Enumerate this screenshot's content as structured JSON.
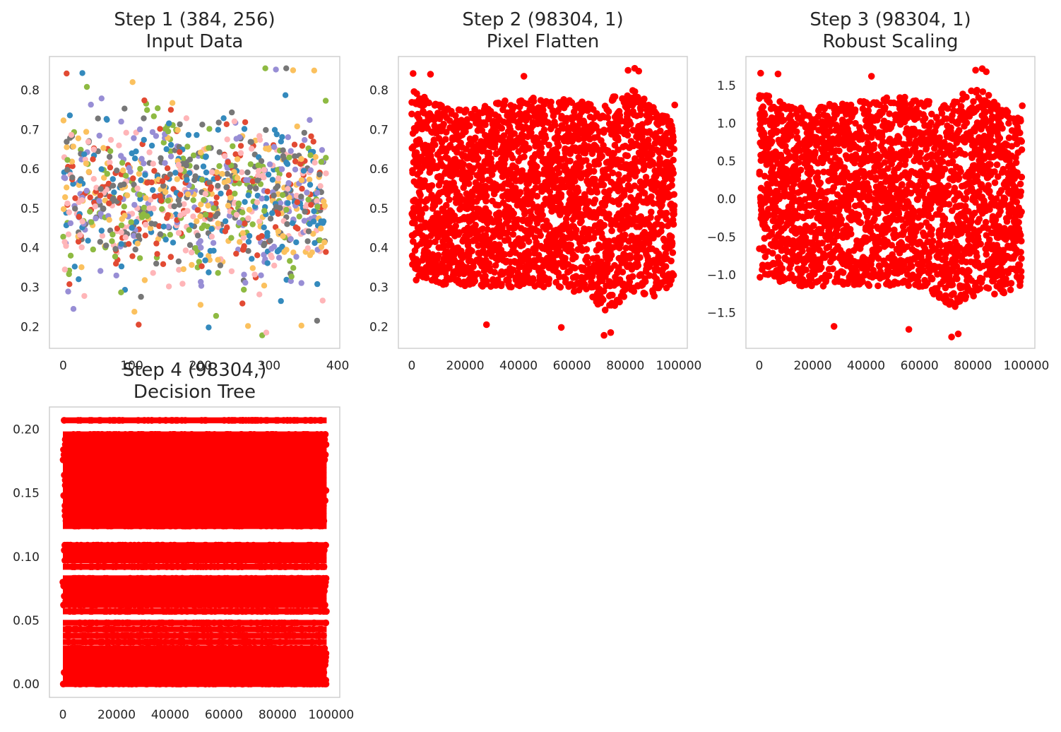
{
  "chart_data": [
    {
      "type": "scatter",
      "title": "Step 1 (384, 256)",
      "subtitle": "Input Data",
      "xlim": [
        -20,
        403
      ],
      "ylim": [
        0.145,
        0.885
      ],
      "xticks": [
        0,
        100,
        200,
        300,
        400
      ],
      "xtick_labels": [
        "0",
        "100",
        "200",
        "300",
        "400"
      ],
      "yticks": [
        0.2,
        0.3,
        0.4,
        0.5,
        0.6,
        0.7,
        0.8
      ],
      "ytick_labels": [
        "0.2",
        "0.3",
        "0.4",
        "0.5",
        "0.6",
        "0.7",
        "0.8"
      ],
      "grid": false,
      "series": [
        {
          "color": "#E24A33",
          "points": 150
        },
        {
          "color": "#348ABD",
          "points": 150
        },
        {
          "color": "#988ED5",
          "points": 150
        },
        {
          "color": "#777777",
          "points": 170
        },
        {
          "color": "#FBC15E",
          "points": 150
        },
        {
          "color": "#8EBA42",
          "points": 150
        },
        {
          "color": "#FFB5B8",
          "points": 150
        }
      ],
      "x_range": [
        0,
        383
      ],
      "y_spread": {
        "mean": 0.52,
        "sd": 0.105,
        "min": 0.175,
        "max": 0.855
      },
      "extremes": [
        {
          "x": 5,
          "y": 0.842
        },
        {
          "x": 28,
          "y": 0.843
        },
        {
          "x": 310,
          "y": 0.852
        },
        {
          "x": 325,
          "y": 0.855
        },
        {
          "x": 335,
          "y": 0.85
        },
        {
          "x": 290,
          "y": 0.178
        },
        {
          "x": 296,
          "y": 0.185
        },
        {
          "x": 110,
          "y": 0.205
        },
        {
          "x": 212,
          "y": 0.198
        },
        {
          "x": 15,
          "y": 0.245
        },
        {
          "x": 370,
          "y": 0.215
        }
      ]
    },
    {
      "type": "scatter",
      "title": "Step 2 (98304, 1)",
      "subtitle": "Pixel Flatten",
      "xlim": [
        -5000,
        103200
      ],
      "ylim": [
        0.145,
        0.885
      ],
      "xticks": [
        0,
        20000,
        40000,
        60000,
        80000,
        100000
      ],
      "xtick_labels": [
        "0",
        "20000",
        "40000",
        "60000",
        "80000",
        "100000"
      ],
      "yticks": [
        0.2,
        0.3,
        0.4,
        0.5,
        0.6,
        0.7,
        0.8
      ],
      "ytick_labels": [
        "0.2",
        "0.3",
        "0.4",
        "0.5",
        "0.6",
        "0.7",
        "0.8"
      ],
      "grid": false,
      "color": "#FF0000",
      "x_range": [
        0,
        98304
      ],
      "envelope": {
        "x": [
          0,
          8000,
          15000,
          25000,
          40000,
          55000,
          65000,
          72000,
          78000,
          84000,
          90000,
          98304
        ],
        "upper": [
          0.8,
          0.77,
          0.75,
          0.76,
          0.78,
          0.78,
          0.77,
          0.76,
          0.8,
          0.8,
          0.76,
          0.72
        ],
        "lower": [
          0.32,
          0.31,
          0.3,
          0.3,
          0.3,
          0.3,
          0.28,
          0.24,
          0.26,
          0.29,
          0.27,
          0.3
        ]
      },
      "extremes": [
        {
          "x": 500,
          "y": 0.842
        },
        {
          "x": 7000,
          "y": 0.84
        },
        {
          "x": 42000,
          "y": 0.835
        },
        {
          "x": 81000,
          "y": 0.85
        },
        {
          "x": 83500,
          "y": 0.855
        },
        {
          "x": 85000,
          "y": 0.848
        },
        {
          "x": 28000,
          "y": 0.205
        },
        {
          "x": 56000,
          "y": 0.198
        },
        {
          "x": 72000,
          "y": 0.178
        },
        {
          "x": 74500,
          "y": 0.185
        },
        {
          "x": 98500,
          "y": 0.762
        }
      ]
    },
    {
      "type": "scatter",
      "title": "Step 3 (98304, 1)",
      "subtitle": "Robust Scaling",
      "xlim": [
        -5000,
        103200
      ],
      "ylim": [
        -1.97,
        1.88
      ],
      "xticks": [
        0,
        20000,
        40000,
        60000,
        80000,
        100000
      ],
      "xtick_labels": [
        "0",
        "20000",
        "40000",
        "60000",
        "80000",
        "100000"
      ],
      "yticks": [
        -1.5,
        -1.0,
        -0.5,
        0.0,
        0.5,
        1.0,
        1.5
      ],
      "ytick_labels": [
        "−1.5",
        "−1.0",
        "−0.5",
        "0.0",
        "0.5",
        "1.0",
        "1.5"
      ],
      "grid": false,
      "color": "#FF0000",
      "x_range": [
        0,
        98304
      ],
      "envelope": {
        "x": [
          0,
          8000,
          15000,
          25000,
          40000,
          55000,
          65000,
          72000,
          78000,
          84000,
          90000,
          98304
        ],
        "upper": [
          1.45,
          1.3,
          1.2,
          1.25,
          1.35,
          1.35,
          1.3,
          1.25,
          1.45,
          1.45,
          1.25,
          1.05
        ],
        "lower": [
          -1.05,
          -1.1,
          -1.15,
          -1.15,
          -1.15,
          -1.15,
          -1.25,
          -1.45,
          -1.35,
          -1.2,
          -1.3,
          -1.15
        ]
      },
      "extremes": [
        {
          "x": 500,
          "y": 1.66
        },
        {
          "x": 7000,
          "y": 1.65
        },
        {
          "x": 42000,
          "y": 1.62
        },
        {
          "x": 81000,
          "y": 1.7
        },
        {
          "x": 83500,
          "y": 1.72
        },
        {
          "x": 85000,
          "y": 1.68
        },
        {
          "x": 28000,
          "y": -1.68
        },
        {
          "x": 56000,
          "y": -1.72
        },
        {
          "x": 72000,
          "y": -1.82
        },
        {
          "x": 74500,
          "y": -1.78
        },
        {
          "x": 98500,
          "y": 1.23
        }
      ]
    },
    {
      "type": "scatter",
      "title": "Step 4 (98304,)",
      "subtitle": "Decision Tree",
      "xlim": [
        -5000,
        103200
      ],
      "ylim": [
        -0.0105,
        0.2175
      ],
      "xticks": [
        0,
        20000,
        40000,
        60000,
        80000,
        100000
      ],
      "xtick_labels": [
        "0",
        "20000",
        "40000",
        "60000",
        "80000",
        "100000"
      ],
      "yticks": [
        0.0,
        0.05,
        0.1,
        0.15,
        0.2
      ],
      "ytick_labels": [
        "0.00",
        "0.05",
        "0.10",
        "0.15",
        "0.20"
      ],
      "grid": false,
      "color": "#FF0000",
      "x_range": [
        0,
        98304
      ],
      "levels": [
        0.0,
        0.003,
        0.006,
        0.009,
        0.012,
        0.015,
        0.018,
        0.021,
        0.024,
        0.028,
        0.033,
        0.038,
        0.043,
        0.048,
        0.057,
        0.062,
        0.065,
        0.069,
        0.073,
        0.077,
        0.08,
        0.083,
        0.092,
        0.097,
        0.101,
        0.105,
        0.109,
        0.124,
        0.128,
        0.132,
        0.136,
        0.14,
        0.144,
        0.148,
        0.152,
        0.156,
        0.16,
        0.164,
        0.168,
        0.172,
        0.176,
        0.18,
        0.184,
        0.188,
        0.192,
        0.196,
        0.207
      ]
    }
  ]
}
